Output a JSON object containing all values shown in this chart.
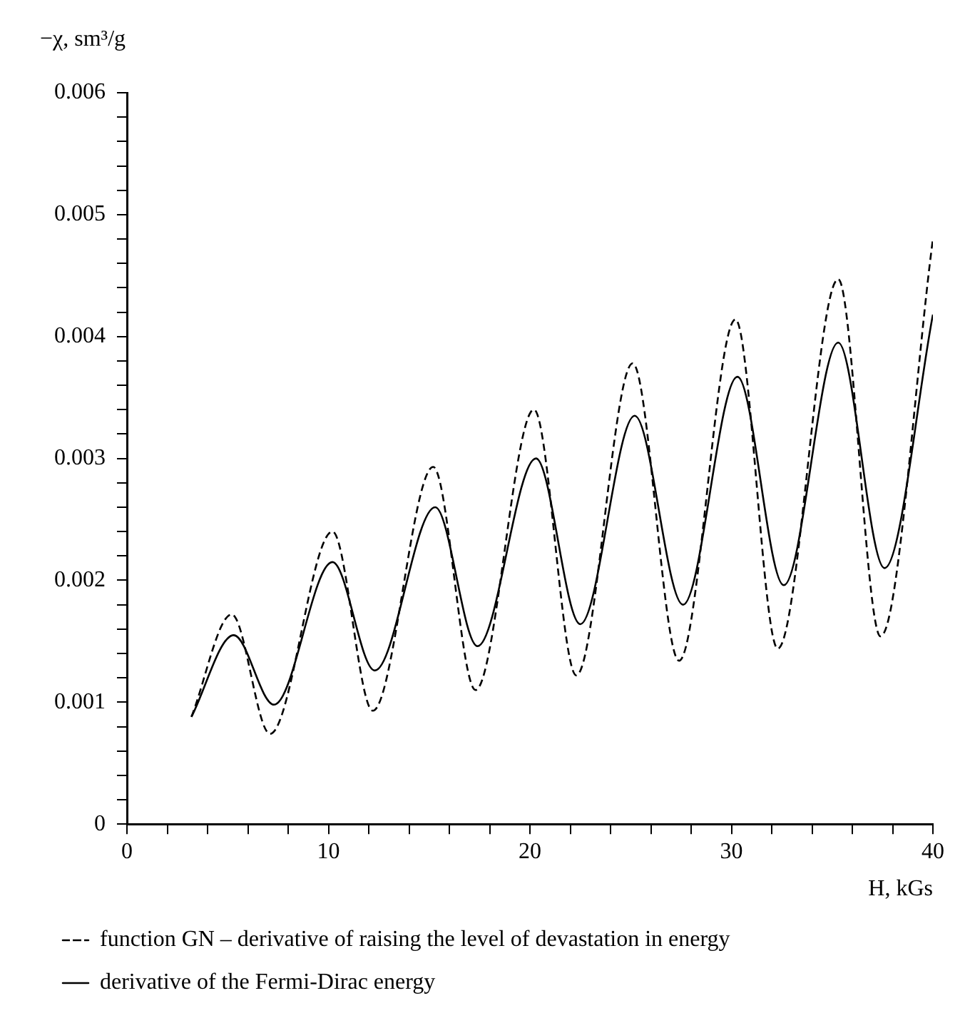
{
  "chart_data": {
    "type": "line",
    "xlabel": "H, kGs",
    "ylabel": "−χ, sm³/g",
    "xlim": [
      0,
      40
    ],
    "xticks": [
      0,
      {
        "value": 2,
        "label": null
      },
      {
        "value": 4,
        "label": null
      },
      {
        "value": 6,
        "label": null
      },
      {
        "value": 8,
        "label": null
      },
      10,
      {
        "value": 12,
        "label": null
      },
      {
        "value": 14,
        "label": null
      },
      {
        "value": 16,
        "label": null
      },
      {
        "value": 18,
        "label": null
      },
      20,
      {
        "value": 22,
        "label": null
      },
      {
        "value": 24,
        "label": null
      },
      {
        "value": 26,
        "label": null
      },
      {
        "value": 28,
        "label": null
      },
      30,
      {
        "value": 32,
        "label": null
      },
      {
        "value": 34,
        "label": null
      },
      {
        "value": 36,
        "label": null
      },
      {
        "value": 38,
        "label": null
      },
      40
    ],
    "ylim": [
      0,
      0.006
    ],
    "yticks": [
      0,
      {
        "value": 0.0002,
        "label": null
      },
      {
        "value": 0.0004,
        "label": null
      },
      {
        "value": 0.0006,
        "label": null
      },
      {
        "value": 0.0008,
        "label": null
      },
      0.001,
      {
        "value": 0.0012,
        "label": null
      },
      {
        "value": 0.0014,
        "label": null
      },
      {
        "value": 0.0016,
        "label": null
      },
      {
        "value": 0.0018,
        "label": null
      },
      0.002,
      {
        "value": 0.0022,
        "label": null
      },
      {
        "value": 0.0024,
        "label": null
      },
      {
        "value": 0.0026,
        "label": null
      },
      {
        "value": 0.0028,
        "label": null
      },
      0.003,
      {
        "value": 0.0032,
        "label": null
      },
      {
        "value": 0.0034,
        "label": null
      },
      {
        "value": 0.0036,
        "label": null
      },
      {
        "value": 0.0038,
        "label": null
      },
      0.004,
      {
        "value": 0.0042,
        "label": null
      },
      {
        "value": 0.0044,
        "label": null
      },
      {
        "value": 0.0046,
        "label": null
      },
      {
        "value": 0.0048,
        "label": null
      },
      0.005,
      {
        "value": 0.0052,
        "label": null
      },
      {
        "value": 0.0054,
        "label": null
      },
      {
        "value": 0.0056,
        "label": null
      },
      {
        "value": 0.0058,
        "label": null
      },
      0.006
    ],
    "grid": false,
    "legend": "bottom left",
    "marker": "none",
    "series": [
      {
        "name": "function GN – derivative of raising the level of devastation in energy",
        "color": "#000000",
        "line_style": "dashed",
        "x": [
          3.2,
          5.2,
          7.1,
          10.2,
          12.2,
          15.2,
          17.3,
          20.2,
          22.3,
          25.1,
          27.4,
          30.2,
          32.3,
          35.3,
          37.4,
          40
        ],
        "values": [
          0.00088,
          0.00172,
          0.00074,
          0.0024,
          0.00093,
          0.00293,
          0.0011,
          0.0034,
          0.00122,
          0.00378,
          0.00134,
          0.00414,
          0.00144,
          0.00447,
          0.00154,
          0.0048
        ]
      },
      {
        "name": "derivative of the Fermi-Dirac energy",
        "color": "#000000",
        "line_style": "solid",
        "x": [
          3.2,
          5.3,
          7.3,
          10.2,
          12.3,
          15.3,
          17.4,
          20.3,
          22.5,
          25.2,
          27.6,
          30.3,
          32.6,
          35.3,
          37.6,
          40
        ],
        "values": [
          0.00088,
          0.00155,
          0.00098,
          0.00215,
          0.00126,
          0.0026,
          0.00146,
          0.003,
          0.00164,
          0.00335,
          0.0018,
          0.00367,
          0.00196,
          0.00395,
          0.0021,
          0.00418
        ]
      }
    ]
  }
}
